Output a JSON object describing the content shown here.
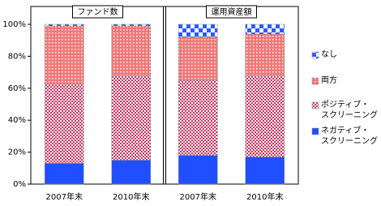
{
  "chart_data": {
    "type": "bar",
    "stacked": true,
    "panels": [
      {
        "title": "ファンド数"
      },
      {
        "title": "運用資産額"
      }
    ],
    "categories": [
      "2007年末",
      "2010年末",
      "2007年末",
      "2010年末"
    ],
    "series": [
      {
        "name": "ネガティブ・\nスクリーニング",
        "color": "#1f4fff",
        "pattern": "solid",
        "values": [
          13,
          15,
          18,
          17
        ]
      },
      {
        "name": "ポジティブ・\nスクリーニング",
        "color": "#c8305a",
        "pattern": "checker",
        "values": [
          50,
          53,
          47,
          51
        ]
      },
      {
        "name": "両方",
        "color": "#f07878",
        "pattern": "dots",
        "values": [
          36,
          31,
          27,
          26
        ]
      },
      {
        "name": "なし",
        "color": "#2a5cff",
        "pattern": "large-checker",
        "values": [
          1,
          1,
          8,
          6
        ]
      }
    ],
    "ylim": [
      0,
      100
    ],
    "yticks": [
      {
        "value": 0,
        "label": "0%"
      },
      {
        "value": 20,
        "label": "20%"
      },
      {
        "value": 40,
        "label": "40%"
      },
      {
        "value": 60,
        "label": "60%"
      },
      {
        "value": 80,
        "label": "80%"
      },
      {
        "value": 100,
        "label": "100%"
      }
    ]
  }
}
